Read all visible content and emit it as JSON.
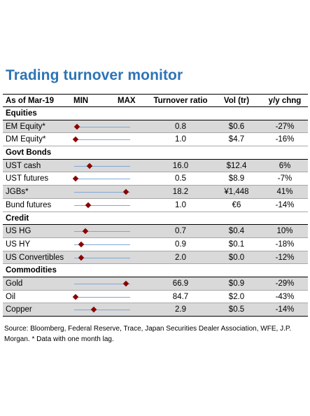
{
  "title": "Trading turnover monitor",
  "colors": {
    "title": "#2e74b5",
    "marker": "#8b0000",
    "range_line": "#7fa7d6",
    "shade": "#d9d9d9"
  },
  "header": {
    "as_of": "As of Mar-19",
    "min": "MIN",
    "max": "MAX",
    "turnover": "Turnover ratio",
    "vol": "Vol (tr)",
    "yoy": "y/y chng"
  },
  "sections": [
    {
      "name": "Equities",
      "rows": [
        {
          "label": "EM Equity*",
          "turnover": "0.8",
          "vol": "$0.6",
          "yoy": "-27%",
          "range_pos": 0.05,
          "shaded": true
        },
        {
          "label": "DM Equity*",
          "turnover": "1.0",
          "vol": "$4.7",
          "yoy": "-16%",
          "range_pos": 0.03,
          "shaded": false
        }
      ]
    },
    {
      "name": "Govt Bonds",
      "rows": [
        {
          "label": "UST cash",
          "turnover": "16.0",
          "vol": "$12.4",
          "yoy": "6%",
          "range_pos": 0.27,
          "shaded": true
        },
        {
          "label": "UST futures",
          "turnover": "0.5",
          "vol": "$8.9",
          "yoy": "-7%",
          "range_pos": 0.02,
          "shaded": false
        },
        {
          "label": "JGBs*",
          "turnover": "18.2",
          "vol": "¥1,448",
          "yoy": "41%",
          "range_pos": 0.92,
          "shaded": true
        },
        {
          "label": "Bund futures",
          "turnover": "1.0",
          "vol": "€6",
          "yoy": "-14%",
          "range_pos": 0.25,
          "shaded": false
        }
      ]
    },
    {
      "name": "Credit",
      "rows": [
        {
          "label": "US HG",
          "turnover": "0.7",
          "vol": "$0.4",
          "yoy": "10%",
          "range_pos": 0.2,
          "shaded": true
        },
        {
          "label": "US HY",
          "turnover": "0.9",
          "vol": "$0.1",
          "yoy": "-18%",
          "range_pos": 0.12,
          "shaded": false
        },
        {
          "label": "US Convertibles",
          "turnover": "2.0",
          "vol": "$0.0",
          "yoy": "-12%",
          "range_pos": 0.13,
          "shaded": true
        }
      ]
    },
    {
      "name": "Commodities",
      "rows": [
        {
          "label": "Gold",
          "turnover": "66.9",
          "vol": "$0.9",
          "yoy": "-29%",
          "range_pos": 0.92,
          "shaded": true
        },
        {
          "label": "Oil",
          "turnover": "84.7",
          "vol": "$2.0",
          "yoy": "-43%",
          "range_pos": 0.03,
          "shaded": false
        },
        {
          "label": "Copper",
          "turnover": "2.9",
          "vol": "$0.5",
          "yoy": "-14%",
          "range_pos": 0.35,
          "shaded": true
        }
      ]
    }
  ],
  "source": "Source: Bloomberg, Federal Reserve, Trace, Japan Securities Dealer Association, WFE, J.P. Morgan. * Data with one month lag."
}
